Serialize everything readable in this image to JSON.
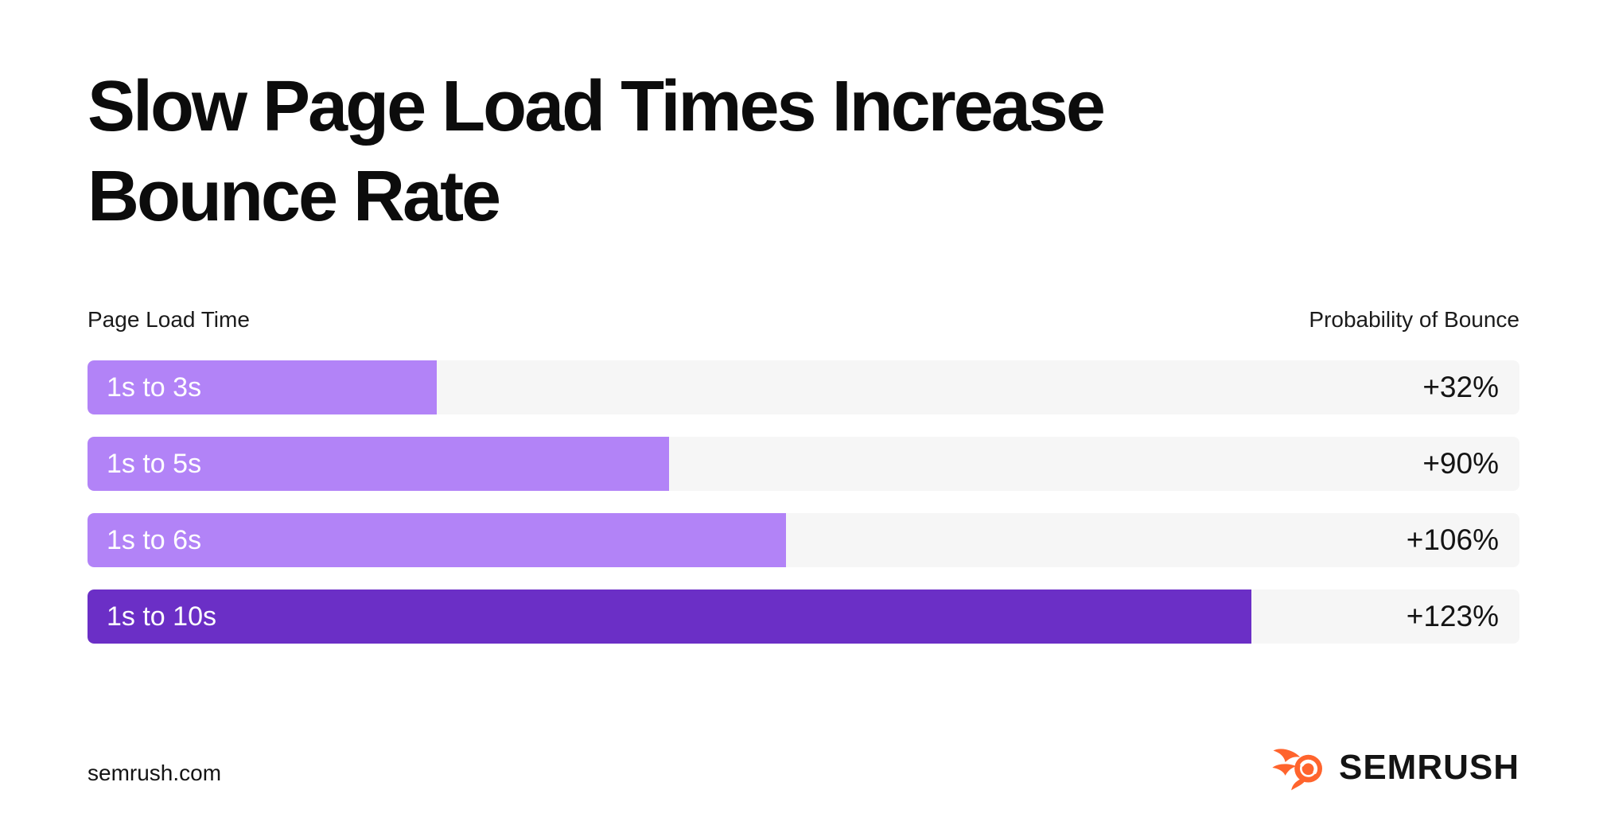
{
  "title": {
    "line1": "Slow Page Load Times Increase",
    "line2": "Bounce Rate"
  },
  "columns": {
    "left": "Page Load Time",
    "right": "Probability of Bounce"
  },
  "chart_data": {
    "type": "bar",
    "orientation": "horizontal",
    "title": "Slow Page Load Times Increase Bounce Rate",
    "ylabel": "Page Load Time",
    "xlabel": "Probability of Bounce",
    "categories": [
      "1s to 3s",
      "1s to 5s",
      "1s to 6s",
      "1s to 10s"
    ],
    "values": [
      32,
      90,
      106,
      123
    ],
    "value_labels": [
      "+32%",
      "+90%",
      "+106%",
      "+123%"
    ],
    "fill_percent": [
      24.4,
      40.6,
      48.8,
      81.3
    ],
    "bar_colors": [
      "#b283f7",
      "#b283f7",
      "#b283f7",
      "#6b2fc6"
    ],
    "track_color": "#f6f6f6",
    "grid": false,
    "legend": false
  },
  "footer": {
    "site": "semrush.com",
    "brand": "SEMRUSH"
  },
  "colors": {
    "background": "#ffffff",
    "bar_light": "#b283f7",
    "bar_dark": "#6b2fc6",
    "track": "#f6f6f6",
    "text": "#141414",
    "logo_orange": "#ff642d"
  }
}
